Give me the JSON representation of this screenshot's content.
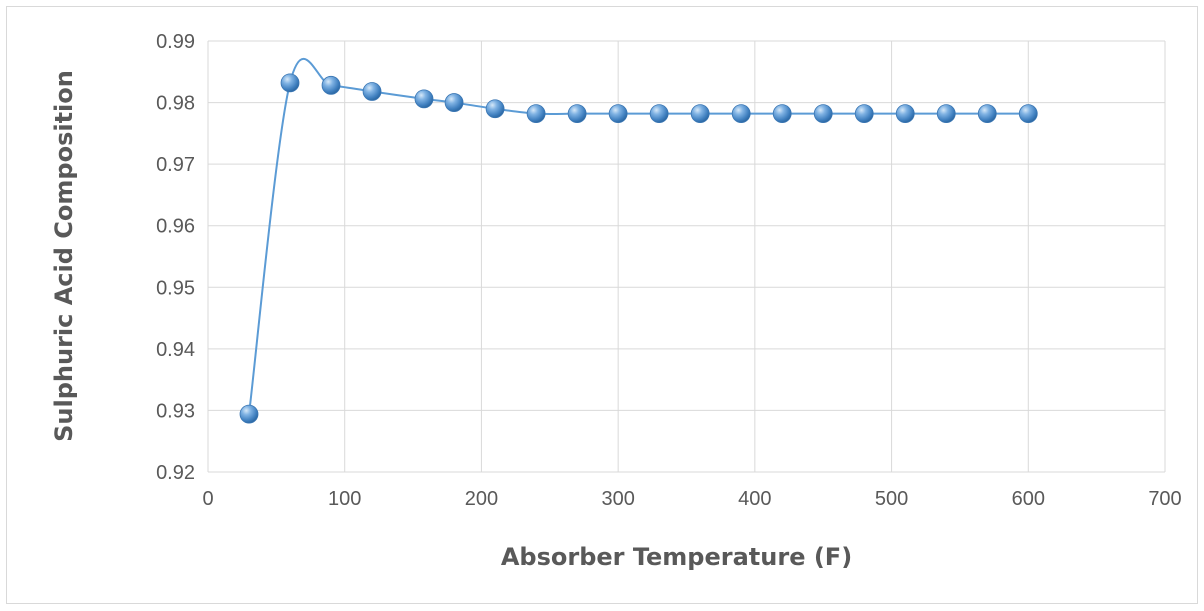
{
  "chart_data": {
    "type": "scatter",
    "title": "",
    "xlabel": "Absorber Temperature (F)",
    "ylabel": "Sulphuric Acid Composition",
    "xlim": [
      0,
      700
    ],
    "ylim": [
      0.92,
      0.99
    ],
    "x_ticks": [
      0,
      100,
      200,
      300,
      400,
      500,
      600,
      700
    ],
    "y_ticks": [
      0.92,
      0.93,
      0.94,
      0.95,
      0.96,
      0.97,
      0.98,
      0.99
    ],
    "grid": true,
    "legend": "none",
    "line_style": "smoothed",
    "series": [
      {
        "x": [
          30,
          60,
          90,
          120,
          158,
          180,
          210,
          240,
          270,
          300,
          330,
          360,
          390,
          420,
          450,
          480,
          510,
          540,
          570,
          600
        ],
        "y": [
          0.9294,
          0.9832,
          0.9828,
          0.9818,
          0.9806,
          0.98,
          0.979,
          0.9782,
          0.9782,
          0.9782,
          0.9782,
          0.9782,
          0.9782,
          0.9782,
          0.9782,
          0.9782,
          0.9782,
          0.9782,
          0.9782,
          0.9782
        ]
      }
    ],
    "colors": {
      "series": "#5b9bd5",
      "marker_fill": "#5b9bd5",
      "grid": "#d9d9d9",
      "tick_text": "#595959"
    }
  }
}
